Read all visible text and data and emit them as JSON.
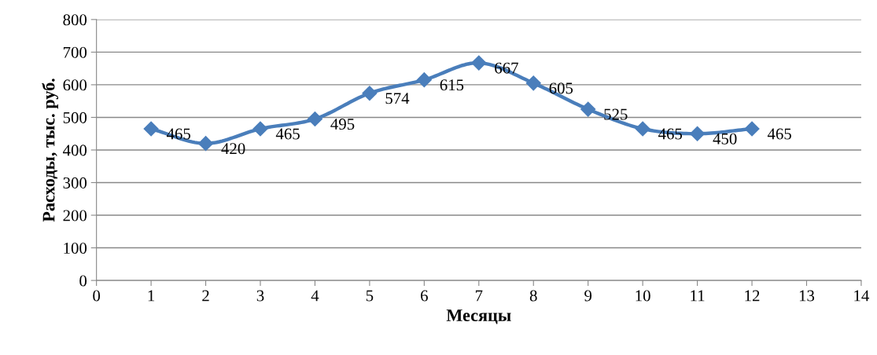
{
  "chart_data": {
    "type": "line",
    "xlabel": "Месяцы",
    "ylabel": "Расходы, тыс. руб.",
    "x": [
      1,
      2,
      3,
      4,
      5,
      6,
      7,
      8,
      9,
      10,
      11,
      12
    ],
    "series": [
      {
        "color": "#4a7ebb",
        "values": [
          465,
          420,
          465,
          495,
          574,
          615,
          667,
          605,
          525,
          465,
          450,
          465
        ]
      }
    ],
    "xlim": [
      0,
      14
    ],
    "xticks": [
      0,
      1,
      2,
      3,
      4,
      5,
      6,
      7,
      8,
      9,
      10,
      11,
      12,
      13,
      14
    ],
    "ylim": [
      0,
      800
    ],
    "yticks": [
      0,
      100,
      200,
      300,
      400,
      500,
      600,
      700,
      800
    ],
    "grid": "y",
    "marker": "diamond",
    "line_style": "solid",
    "data_labels": true,
    "legend": false
  }
}
